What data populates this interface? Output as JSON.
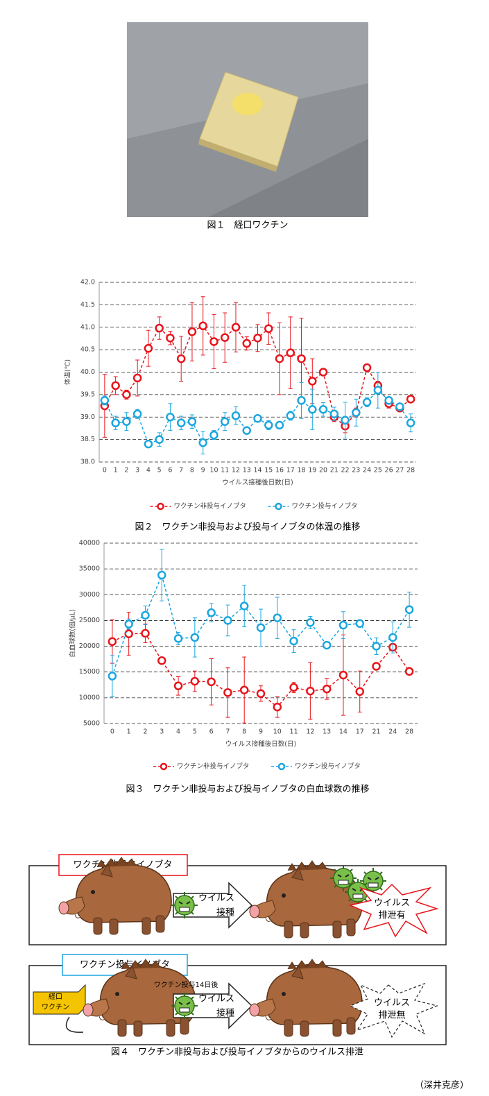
{
  "figure1": {
    "caption": "図１　経口ワクチン"
  },
  "chart_data": [
    {
      "type": "line",
      "title": "図２　ワクチン非投与および投与イノブタの体温の推移",
      "ylabel": "体温(℃)",
      "xlabel": "ウイルス接種後日数(日)",
      "categories": [
        "0",
        "1",
        "2",
        "3",
        "4",
        "5",
        "6",
        "7",
        "8",
        "9",
        "10",
        "11",
        "12",
        "13",
        "14",
        "15",
        "16",
        "17",
        "18",
        "19",
        "20",
        "21",
        "22",
        "23",
        "24",
        "25",
        "26",
        "27",
        "28"
      ],
      "series": [
        {
          "name": "ワクチン非投与イノブタ",
          "color": "#e8141b",
          "values": [
            39.25,
            39.7,
            39.5,
            39.87,
            40.53,
            40.98,
            40.76,
            40.3,
            40.9,
            41.03,
            40.68,
            40.77,
            41.0,
            40.64,
            40.76,
            40.97,
            40.3,
            40.43,
            40.3,
            39.8,
            40.0,
            39.0,
            38.8,
            39.1,
            40.1,
            39.7,
            39.3,
            39.2,
            39.4
          ],
          "errors": [
            0.7,
            0.2,
            0.1,
            0.4,
            0.4,
            0.25,
            0.15,
            0.5,
            0.65,
            0.65,
            0.6,
            0.55,
            0.55,
            0.15,
            0.3,
            0.35,
            0.8,
            0.8,
            0.9,
            0.5,
            0,
            0.1,
            0.15,
            0.1,
            0,
            0.1,
            0.1,
            0.05,
            0
          ]
        },
        {
          "name": "ワクチン投与イノブタ",
          "color": "#1ba6df",
          "values": [
            39.37,
            38.87,
            38.9,
            39.07,
            38.4,
            38.5,
            39.0,
            38.87,
            38.9,
            38.43,
            38.6,
            38.9,
            39.03,
            38.7,
            38.97,
            38.82,
            38.82,
            39.03,
            39.37,
            39.17,
            39.17,
            39.07,
            38.93,
            39.1,
            39.33,
            39.6,
            39.37,
            39.23,
            38.87
          ],
          "errors": [
            0.1,
            0.15,
            0.2,
            0.1,
            0,
            0.15,
            0.3,
            0.15,
            0.15,
            0.25,
            0.1,
            0.2,
            0.2,
            0,
            0,
            0.1,
            0,
            0.1,
            0.4,
            0.45,
            0.15,
            0.15,
            0.4,
            0.3,
            0.1,
            0.4,
            0,
            0,
            0.2
          ]
        }
      ],
      "ylim": [
        38.0,
        42.0
      ],
      "yticks": [
        {
          "value": 38.0,
          "label": "38.0"
        },
        38.5,
        {
          "value": 39.0,
          "label": "39.0"
        },
        39.5,
        {
          "value": 40.0,
          "label": "40.0"
        },
        40.5,
        {
          "value": 41.0,
          "label": "41.0"
        },
        41.5,
        {
          "value": 42.0,
          "label": "42.0"
        }
      ],
      "grid": true,
      "legend": "bottom"
    },
    {
      "type": "line",
      "title": "図３　ワクチン非投与および投与イノブタの白血球数の推移",
      "ylabel": "白血球数(個/μL)",
      "xlabel": "ウイルス接種後日数(日)",
      "categories": [
        "0",
        "1",
        "2",
        "3",
        "4",
        "5",
        "6",
        "7",
        "8",
        "9",
        "10",
        "11",
        "12",
        "13",
        "14",
        "17",
        "21",
        "24",
        "28"
      ],
      "series": [
        {
          "name": "ワクチン非投与イノブタ",
          "color": "#e8141b",
          "values": [
            20900,
            22400,
            22500,
            17200,
            12300,
            13200,
            13100,
            11000,
            11500,
            10800,
            8200,
            12000,
            11300,
            11700,
            14400,
            11200,
            16100,
            19800,
            15100
          ],
          "errors": [
            4200,
            4200,
            1800,
            0,
            1800,
            2000,
            4500,
            4800,
            6400,
            1500,
            2000,
            1000,
            5500,
            2000,
            7800,
            4000,
            0,
            0,
            0
          ]
        },
        {
          "name": "ワクチン投与イノブタ",
          "color": "#1ba6df",
          "values": [
            14200,
            24300,
            26000,
            33800,
            21500,
            21700,
            26500,
            25000,
            27800,
            23600,
            25500,
            21000,
            24600,
            20200,
            24100,
            24400,
            20000,
            21700,
            27100
          ],
          "errors": [
            4000,
            1000,
            1800,
            5000,
            1200,
            3800,
            1800,
            3000,
            4000,
            3600,
            4000,
            2200,
            1200,
            0,
            2600,
            0,
            1600,
            3000,
            3400
          ]
        }
      ],
      "ylim": [
        5000,
        40000
      ],
      "yticks": [
        5000,
        10000,
        15000,
        20000,
        25000,
        30000,
        35000,
        40000
      ],
      "grid": true,
      "legend": "bottom"
    }
  ],
  "figure4": {
    "caption": "図４　ワクチン非投与および投与イノブタからのウイルス排泄",
    "panels": [
      {
        "label": "ワクチン非投与イノブタ",
        "inoculation": [
          "ウイルス",
          "接種"
        ],
        "result": [
          "ウイルス",
          "排泄有"
        ]
      },
      {
        "label": "ワクチン投与イノブタ",
        "vaccine": [
          "経口",
          "ワクチン"
        ],
        "note": "ワクチン投与14日後",
        "inoculation": [
          "ウイルス",
          "接種"
        ],
        "result": [
          "ウイルス",
          "排泄無"
        ]
      }
    ]
  },
  "author": "（深井克彦）"
}
